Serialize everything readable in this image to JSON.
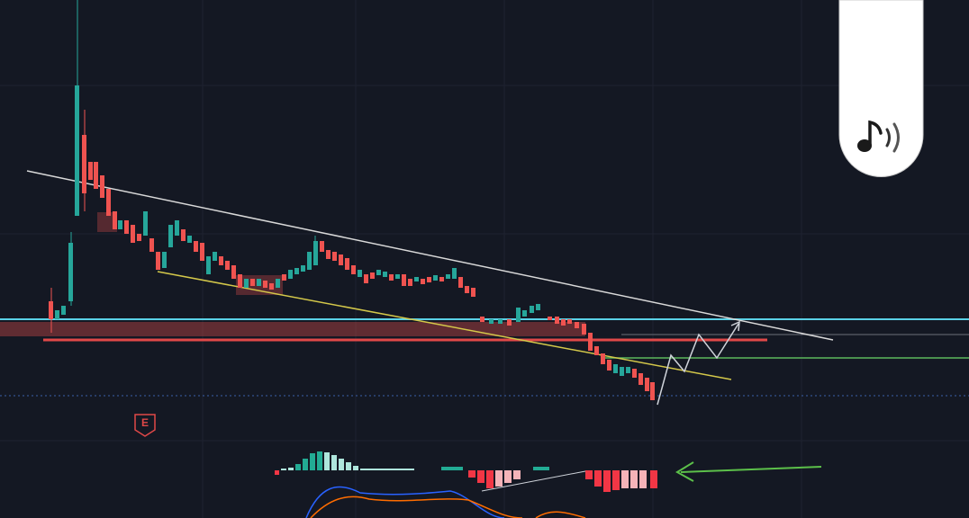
{
  "badge": {
    "label": "E"
  }
}
